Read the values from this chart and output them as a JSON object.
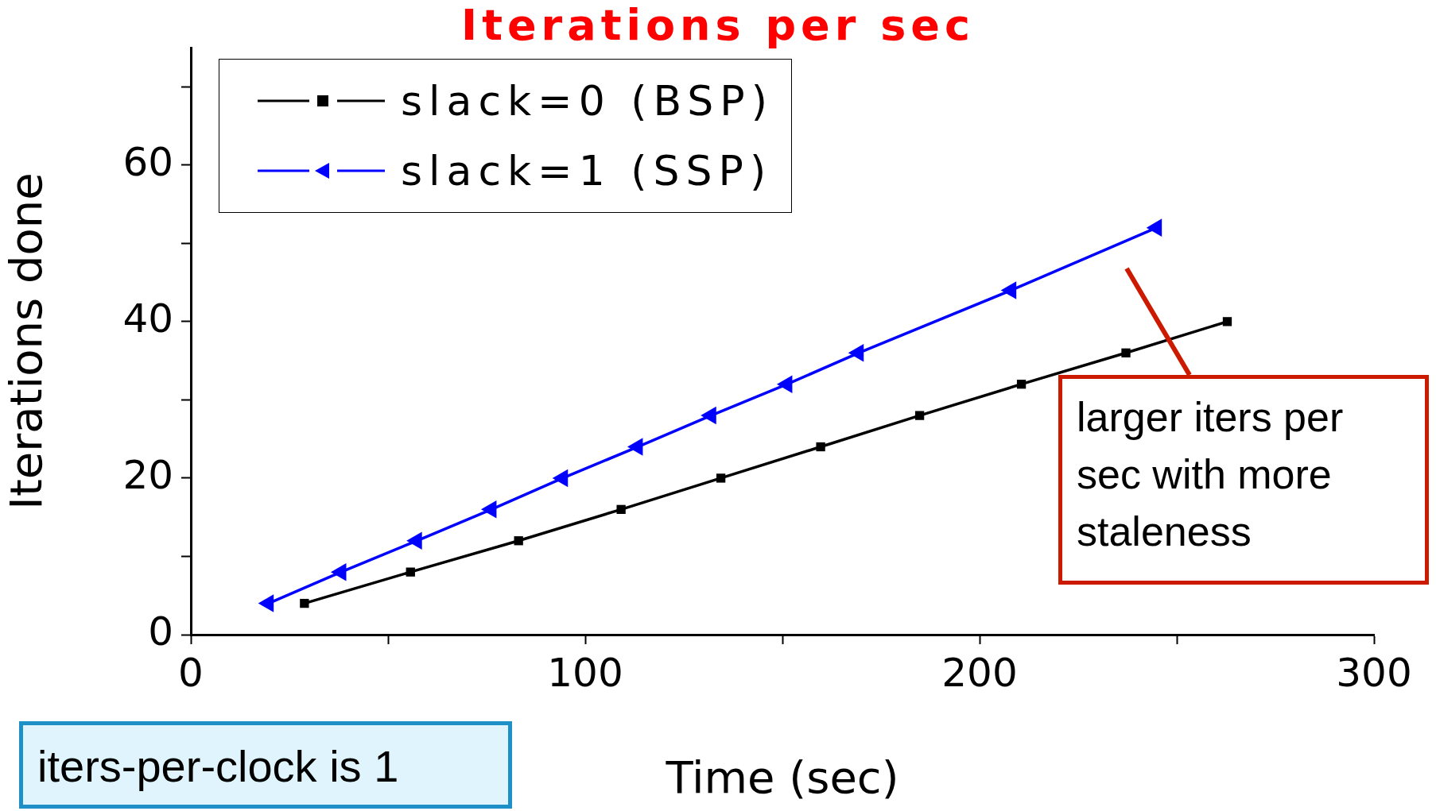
{
  "chart_data": {
    "type": "line",
    "title": "Iterations per sec",
    "xlabel": "Time (sec)",
    "ylabel": "Iterations done",
    "series": [
      {
        "name": "slack=0 (BSP)",
        "color": "#000000",
        "marker": "square",
        "x": [
          28.8,
          55.7,
          83.1,
          109.1,
          134.4,
          159.7,
          184.8,
          210.6,
          237.1,
          262.8
        ],
        "values": [
          4,
          8,
          12,
          16,
          20,
          24,
          28,
          32,
          36,
          40
        ]
      },
      {
        "name": "slack=1 (SSP)",
        "color": "#0000ff",
        "marker": "triangle",
        "x": [
          19.7,
          38.1,
          57.3,
          76.2,
          94.3,
          113.3,
          131.9,
          151.2,
          169.3,
          208.0,
          244.9
        ],
        "values": [
          4,
          8,
          12,
          16,
          20,
          24,
          28,
          32,
          36,
          44,
          52
        ]
      }
    ],
    "xlim": [
      0,
      300
    ],
    "xticks": [
      0,
      {
        "value": 50,
        "label": null
      },
      100,
      {
        "value": 150,
        "label": null
      },
      200,
      {
        "value": 250,
        "label": null
      },
      300
    ],
    "ylim": [
      0,
      75
    ],
    "yticks": [
      0,
      {
        "value": 10,
        "label": null
      },
      20,
      {
        "value": 30,
        "label": null
      },
      40,
      {
        "value": 50,
        "label": null
      },
      60,
      {
        "value": 70,
        "label": null
      }
    ],
    "legend": "top left",
    "grid": false,
    "line_style": "solid",
    "annotations": [
      "larger iters per sec with more staleness",
      "iters-per-clock is 1"
    ]
  }
}
